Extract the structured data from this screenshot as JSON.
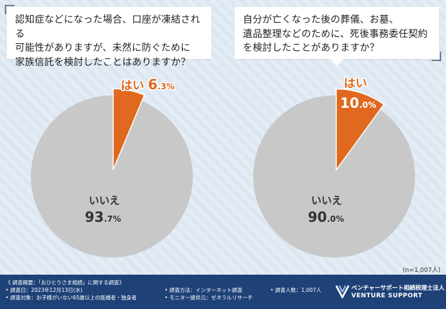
{
  "chart_data": [
    {
      "type": "pie",
      "title": "認知症などになった場合、口座が凍結される\n可能性がありますが、未然に防ぐために\n家族信託を検討したことはありますか？",
      "slices": [
        {
          "label": "はい",
          "value": 6.3,
          "value_main": "6",
          "value_dec": ".3%",
          "color": "#e0691f"
        },
        {
          "label": "いいえ",
          "value": 93.7,
          "value_main": "93",
          "value_dec": ".7%",
          "color": "#c8c8c8"
        }
      ]
    },
    {
      "type": "pie",
      "title": "自分が亡くなった後の葬儀、お墓、\n遺品整理などのために、死後事務委任契約\nを検討したことがありますか？",
      "slices": [
        {
          "label": "はい",
          "value": 10.0,
          "value_main": "10",
          "value_dec": ".0%",
          "color": "#e0691f"
        },
        {
          "label": "いいえ",
          "value": 90.0,
          "value_main": "90",
          "value_dec": ".0%",
          "color": "#c8c8c8"
        }
      ]
    }
  ],
  "sample_size": "(n=1,007人)",
  "footer": {
    "overview": "《 調査概要：「おひとりさま相続」に関する調査》",
    "date": "• 調査日：2023年12月13日(水)",
    "target": "• 調査対象：お子様がいない65歳以上の既婚者・独身者",
    "method": "• 調査方法：インターネット調査",
    "monitor": "• モニター提供元：ゼネラルリサーチ",
    "count": "• 調査人数：1,007人",
    "logo_jp": "ベンチャーサポート相続税理士法人",
    "logo_en": "VENTURE SUPPORT"
  }
}
